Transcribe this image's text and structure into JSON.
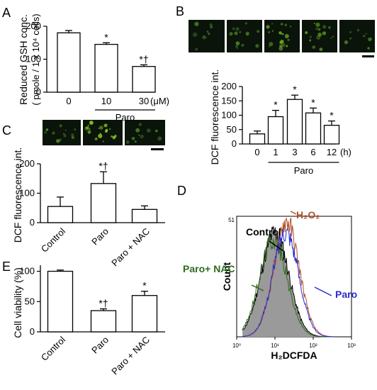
{
  "panels": {
    "A": {
      "letter": "A"
    },
    "B": {
      "letter": "B"
    },
    "C": {
      "letter": "C"
    },
    "D": {
      "letter": "D"
    },
    "E": {
      "letter": "E"
    }
  },
  "chart_data": [
    {
      "id": "A",
      "type": "bar",
      "categories": [
        "0",
        "10",
        "30"
      ],
      "values": [
        180,
        145,
        78
      ],
      "errors": [
        7,
        5,
        5
      ],
      "marks": [
        "",
        "*",
        "*†"
      ],
      "ylabel": "Reduced GSH conc.",
      "ylabel2": "( pmole / 1 x 10⁴ cells)",
      "yticks": [
        0,
        100,
        200
      ],
      "ylim": [
        0,
        200
      ],
      "unit": "(μM)",
      "group_label": "Paro",
      "group_span": [
        1,
        2
      ]
    },
    {
      "id": "B",
      "type": "bar",
      "categories": [
        "0",
        "1",
        "3",
        "6",
        "12"
      ],
      "values": [
        35,
        95,
        155,
        108,
        65
      ],
      "errors": [
        10,
        22,
        15,
        17,
        15
      ],
      "marks": [
        "",
        "*",
        "*",
        "*",
        "*"
      ],
      "ylabel": "DCF fluorescence int.",
      "yticks": [
        0,
        50,
        100,
        150,
        200
      ],
      "ylim": [
        0,
        200
      ],
      "unit": "(h)",
      "group_label": "Paro",
      "group_span": [
        1,
        4
      ]
    },
    {
      "id": "C",
      "type": "bar",
      "categories": [
        "Control",
        "Paro",
        "Paro + NAC"
      ],
      "values": [
        55,
        133,
        45
      ],
      "errors": [
        32,
        40,
        12
      ],
      "marks": [
        "",
        "*†",
        ""
      ],
      "ylabel": "DCF fluorescence int.",
      "yticks": [
        0,
        100,
        200
      ],
      "ylim": [
        0,
        200
      ]
    },
    {
      "id": "E",
      "type": "bar",
      "categories": [
        "Control",
        "Paro",
        "Paro + NAC"
      ],
      "values": [
        100,
        35,
        60
      ],
      "errors": [
        2,
        3,
        7
      ],
      "marks": [
        "",
        "*†",
        "*"
      ],
      "ylabel": "Cell viability (%)",
      "yticks": [
        0,
        50,
        100
      ],
      "ylim": [
        0,
        110
      ]
    },
    {
      "id": "D",
      "type": "area",
      "xlabel": "H₂DCFDA",
      "ylabel": "Count",
      "x_scale": "log",
      "xlim": [
        1,
        1000
      ],
      "xticks": [
        "10⁰",
        "10¹",
        "10²",
        "10³"
      ],
      "ytick_top": "51",
      "series": [
        {
          "name": "Control",
          "color": "#000000",
          "fill": "#9a9a9a",
          "peak_x": 10,
          "peak_y": 45
        },
        {
          "name": "Paro+ NAC",
          "color": "#2f6b1f",
          "peak_x": 9,
          "peak_y": 42
        },
        {
          "name": "H₂O₂",
          "color": "#b0522a",
          "peak_x": 20,
          "peak_y": 50
        },
        {
          "name": "Paro",
          "color": "#2a2ad0",
          "peak_x": 19,
          "peak_y": 46
        }
      ]
    }
  ]
}
